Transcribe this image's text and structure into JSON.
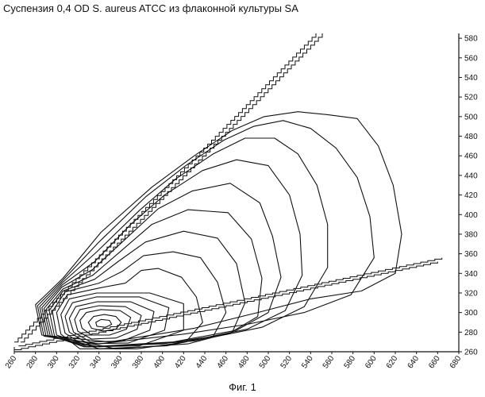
{
  "page": {
    "title": "Суспензия 0,4 OD S. aureus ATCC из флаконной культуры SA",
    "caption": "Фиг. 1"
  },
  "chart_data": {
    "type": "contour",
    "title": "Суспензия 0,4 OD S. aureus ATCC из флаконной культуры SA",
    "xlabel": "",
    "ylabel": "",
    "xlim": [
      260,
      680
    ],
    "ylim": [
      260,
      585
    ],
    "x_ticks": [
      260,
      280,
      300,
      320,
      340,
      360,
      380,
      400,
      420,
      440,
      460,
      480,
      500,
      520,
      540,
      560,
      580,
      600,
      620,
      640,
      660,
      680
    ],
    "y_ticks": [
      260,
      280,
      300,
      320,
      340,
      360,
      380,
      400,
      420,
      440,
      460,
      480,
      500,
      520,
      540,
      560,
      580
    ],
    "y_axis_position": "right",
    "grid": false,
    "peak": {
      "x": 345,
      "y": 288
    },
    "scatter_band_upper": [
      [
        260,
        270
      ],
      [
        545,
        585
      ]
    ],
    "scatter_band_lower": [
      [
        260,
        262
      ],
      [
        660,
        352
      ]
    ],
    "contours": [
      [
        [
          337,
          290
        ],
        [
          342,
          293
        ],
        [
          350,
          292
        ],
        [
          352,
          288
        ],
        [
          346,
          285
        ],
        [
          338,
          286
        ],
        [
          337,
          290
        ]
      ],
      [
        [
          330,
          290
        ],
        [
          335,
          296
        ],
        [
          345,
          298
        ],
        [
          356,
          296
        ],
        [
          361,
          290
        ],
        [
          356,
          283
        ],
        [
          344,
          281
        ],
        [
          333,
          284
        ],
        [
          330,
          290
        ]
      ],
      [
        [
          322,
          292
        ],
        [
          328,
          300
        ],
        [
          342,
          303
        ],
        [
          360,
          302
        ],
        [
          370,
          295
        ],
        [
          366,
          283
        ],
        [
          350,
          277
        ],
        [
          333,
          277
        ],
        [
          324,
          284
        ],
        [
          322,
          292
        ]
      ],
      [
        [
          317,
          293
        ],
        [
          322,
          303
        ],
        [
          340,
          307
        ],
        [
          365,
          306
        ],
        [
          380,
          297
        ],
        [
          376,
          283
        ],
        [
          356,
          274
        ],
        [
          333,
          273
        ],
        [
          320,
          281
        ],
        [
          317,
          293
        ]
      ],
      [
        [
          312,
          294
        ],
        [
          318,
          306
        ],
        [
          338,
          311
        ],
        [
          370,
          311
        ],
        [
          392,
          301
        ],
        [
          388,
          282
        ],
        [
          362,
          271
        ],
        [
          332,
          270
        ],
        [
          316,
          280
        ],
        [
          312,
          294
        ]
      ],
      [
        [
          308,
          296
        ],
        [
          315,
          310
        ],
        [
          338,
          316
        ],
        [
          378,
          316
        ],
        [
          406,
          305
        ],
        [
          402,
          282
        ],
        [
          368,
          269
        ],
        [
          330,
          268
        ],
        [
          312,
          280
        ],
        [
          308,
          296
        ]
      ],
      [
        [
          304,
          298
        ],
        [
          312,
          314
        ],
        [
          338,
          320
        ],
        [
          388,
          320
        ],
        [
          420,
          309
        ],
        [
          420,
          282
        ],
        [
          378,
          266
        ],
        [
          328,
          265
        ],
        [
          308,
          279
        ],
        [
          304,
          298
        ]
      ],
      [
        [
          300,
          300
        ],
        [
          310,
          318
        ],
        [
          340,
          325
        ],
        [
          365,
          330
        ],
        [
          380,
          343
        ],
        [
          396,
          345
        ],
        [
          418,
          336
        ],
        [
          432,
          316
        ],
        [
          438,
          290
        ],
        [
          422,
          270
        ],
        [
          376,
          263
        ],
        [
          322,
          263
        ],
        [
          304,
          278
        ],
        [
          300,
          300
        ]
      ],
      [
        [
          296,
          301
        ],
        [
          308,
          321
        ],
        [
          340,
          330
        ],
        [
          362,
          342
        ],
        [
          382,
          358
        ],
        [
          410,
          362
        ],
        [
          436,
          356
        ],
        [
          452,
          331
        ],
        [
          460,
          300
        ],
        [
          448,
          276
        ],
        [
          404,
          266
        ],
        [
          340,
          263
        ],
        [
          300,
          277
        ],
        [
          296,
          301
        ]
      ],
      [
        [
          293,
          302
        ],
        [
          306,
          322
        ],
        [
          336,
          334
        ],
        [
          358,
          352
        ],
        [
          384,
          372
        ],
        [
          420,
          383
        ],
        [
          452,
          376
        ],
        [
          470,
          350
        ],
        [
          478,
          310
        ],
        [
          466,
          280
        ],
        [
          424,
          268
        ],
        [
          356,
          263
        ],
        [
          298,
          276
        ],
        [
          293,
          302
        ]
      ],
      [
        [
          290,
          303
        ],
        [
          306,
          324
        ],
        [
          334,
          338
        ],
        [
          360,
          362
        ],
        [
          390,
          390
        ],
        [
          424,
          405
        ],
        [
          462,
          402
        ],
        [
          484,
          375
        ],
        [
          494,
          335
        ],
        [
          490,
          296
        ],
        [
          462,
          278
        ],
        [
          400,
          268
        ],
        [
          326,
          265
        ],
        [
          296,
          276
        ],
        [
          290,
          303
        ]
      ],
      [
        [
          288,
          304
        ],
        [
          305,
          326
        ],
        [
          334,
          344
        ],
        [
          364,
          374
        ],
        [
          396,
          406
        ],
        [
          428,
          424
        ],
        [
          464,
          432
        ],
        [
          492,
          412
        ],
        [
          504,
          378
        ],
        [
          512,
          336
        ],
        [
          500,
          300
        ],
        [
          470,
          282
        ],
        [
          410,
          270
        ],
        [
          330,
          265
        ],
        [
          294,
          276
        ],
        [
          288,
          304
        ]
      ],
      [
        [
          286,
          305
        ],
        [
          305,
          328
        ],
        [
          336,
          352
        ],
        [
          370,
          390
        ],
        [
          402,
          420
        ],
        [
          438,
          445
        ],
        [
          470,
          456
        ],
        [
          500,
          450
        ],
        [
          520,
          420
        ],
        [
          530,
          380
        ],
        [
          532,
          338
        ],
        [
          516,
          302
        ],
        [
          480,
          283
        ],
        [
          420,
          270
        ],
        [
          336,
          265
        ],
        [
          292,
          276
        ],
        [
          286,
          305
        ]
      ],
      [
        [
          284,
          306
        ],
        [
          305,
          330
        ],
        [
          338,
          362
        ],
        [
          378,
          404
        ],
        [
          412,
          436
        ],
        [
          448,
          462
        ],
        [
          478,
          478
        ],
        [
          506,
          478
        ],
        [
          528,
          462
        ],
        [
          546,
          430
        ],
        [
          556,
          390
        ],
        [
          556,
          346
        ],
        [
          534,
          306
        ],
        [
          494,
          285
        ],
        [
          430,
          271
        ],
        [
          340,
          265
        ],
        [
          290,
          276
        ],
        [
          284,
          306
        ]
      ],
      [
        [
          282,
          307
        ],
        [
          305,
          332
        ],
        [
          340,
          372
        ],
        [
          384,
          418
        ],
        [
          422,
          450
        ],
        [
          458,
          476
        ],
        [
          486,
          490
        ],
        [
          514,
          496
        ],
        [
          540,
          488
        ],
        [
          564,
          468
        ],
        [
          584,
          438
        ],
        [
          596,
          398
        ],
        [
          600,
          356
        ],
        [
          578,
          318
        ],
        [
          534,
          300
        ],
        [
          480,
          288
        ],
        [
          420,
          278
        ],
        [
          340,
          268
        ],
        [
          288,
          276
        ],
        [
          282,
          307
        ]
      ],
      [
        [
          280,
          308
        ],
        [
          306,
          335
        ],
        [
          342,
          382
        ],
        [
          390,
          428
        ],
        [
          430,
          460
        ],
        [
          466,
          486
        ],
        [
          496,
          500
        ],
        [
          528,
          505
        ],
        [
          556,
          502
        ],
        [
          584,
          498
        ],
        [
          604,
          470
        ],
        [
          618,
          430
        ],
        [
          626,
          380
        ],
        [
          620,
          340
        ],
        [
          588,
          322
        ],
        [
          540,
          314
        ],
        [
          490,
          300
        ],
        [
          430,
          284
        ],
        [
          350,
          270
        ],
        [
          286,
          277
        ],
        [
          280,
          308
        ]
      ]
    ]
  }
}
